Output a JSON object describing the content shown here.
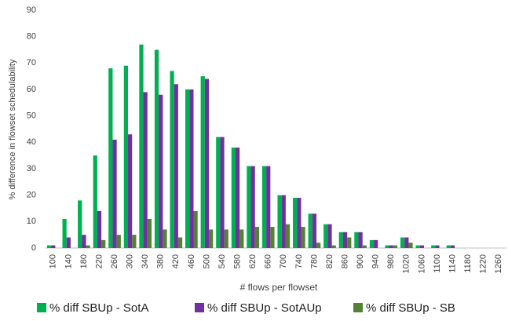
{
  "chart_data": {
    "type": "bar",
    "x_label": "# flows per flowset",
    "y_label": "% difference in flowset schedulability",
    "categories": [
      "100",
      "140",
      "180",
      "220",
      "260",
      "300",
      "340",
      "380",
      "420",
      "460",
      "500",
      "540",
      "580",
      "620",
      "660",
      "700",
      "740",
      "780",
      "820",
      "860",
      "900",
      "940",
      "980",
      "1020",
      "1060",
      "1100",
      "1140",
      "1180",
      "1220",
      "1260"
    ],
    "series": [
      {
        "name": "% diff SBUp - SotA",
        "color": "#00b050",
        "values": [
          1,
          11,
          18,
          35,
          68,
          69,
          77,
          75,
          67,
          60,
          65,
          42,
          38,
          31,
          31,
          20,
          19,
          13,
          9,
          6,
          6,
          3,
          1,
          4,
          1,
          1,
          1,
          0,
          0,
          0
        ]
      },
      {
        "name": "% diff SBUp - SotAUp",
        "color": "#7030a0",
        "values": [
          1,
          4,
          5,
          14,
          41,
          43,
          59,
          58,
          62,
          60,
          64,
          42,
          38,
          31,
          31,
          20,
          19,
          13,
          9,
          6,
          6,
          3,
          1,
          4,
          1,
          1,
          1,
          0,
          0,
          0
        ]
      },
      {
        "name": "% diff SBUp - SB",
        "color": "#548235",
        "values": [
          0,
          0,
          1,
          3,
          5,
          5,
          11,
          7,
          4,
          14,
          7,
          7,
          7,
          8,
          8,
          9,
          8,
          2,
          1,
          4,
          1,
          0,
          1,
          2,
          0,
          0,
          0,
          0,
          0,
          0
        ]
      }
    ],
    "ylim": [
      0,
      90
    ],
    "yticks": [
      0,
      10,
      20,
      30,
      40,
      50,
      60,
      70,
      80,
      90
    ],
    "grid": false,
    "legend": "bottom"
  }
}
